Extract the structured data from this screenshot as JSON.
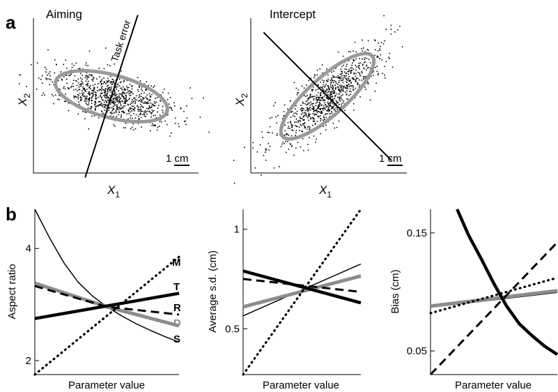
{
  "panel_labels": {
    "a": "a",
    "b": "b"
  },
  "colors": {
    "ink": "#000000",
    "gray": "#8c8c8c",
    "ellipse": "#9a9a9a"
  },
  "chart_data": [
    {
      "type": "scatter",
      "title": "Aiming",
      "xlabel": "X",
      "xlabel_sub": "1",
      "ylabel": "X",
      "ylabel_sub": "2",
      "line_label": "Task error",
      "scale_bar_label": "1 cm",
      "cloud": {
        "center": [
          0,
          0
        ],
        "major_sd": 1.3,
        "minor_sd": 0.45,
        "angle_deg": -15,
        "n": 900
      },
      "covariance_ellipse": {
        "semi_major": 2.3,
        "semi_minor": 0.85,
        "angle_deg": -15
      },
      "task_error_line": {
        "angle_deg": 72,
        "half_length": 3.4
      }
    },
    {
      "type": "scatter",
      "title": "Intercept",
      "xlabel": "X",
      "xlabel_sub": "1",
      "ylabel": "X",
      "ylabel_sub": "2",
      "scale_bar_label": "1 cm",
      "cloud": {
        "center": [
          0,
          0
        ],
        "major_sd": 1.35,
        "minor_sd": 0.42,
        "angle_deg": 42,
        "n": 900
      },
      "covariance_ellipse": {
        "semi_major": 2.4,
        "semi_minor": 0.75,
        "angle_deg": 42
      },
      "line": {
        "angle_deg": -45,
        "half_length": 3.6
      }
    },
    {
      "type": "line",
      "xlabel": "Parameter value",
      "ylabel": "Aspect ratio",
      "xlim": [
        0,
        1
      ],
      "ylim": [
        1.75,
        4.7
      ],
      "yticks": [
        2,
        4
      ],
      "series": [
        {
          "name": "M",
          "style": "dotted",
          "x": [
            0,
            1
          ],
          "y": [
            1.72,
            3.85
          ]
        },
        {
          "name": "T",
          "style": "thick",
          "x": [
            0,
            1
          ],
          "y": [
            2.75,
            3.2
          ]
        },
        {
          "name": "R",
          "style": "dashed",
          "x": [
            0,
            0.5,
            1
          ],
          "y": [
            3.33,
            2.96,
            2.82
          ]
        },
        {
          "name": "D",
          "style": "gray",
          "x": [
            0,
            0.5,
            1
          ],
          "y": [
            3.38,
            2.96,
            2.62
          ]
        },
        {
          "name": "S",
          "style": "thin",
          "x": [
            0,
            0.1,
            0.2,
            0.3,
            0.4,
            0.5,
            0.6,
            0.7,
            0.8,
            0.9,
            1.0
          ],
          "y": [
            4.75,
            4.2,
            3.75,
            3.4,
            3.15,
            2.96,
            2.8,
            2.66,
            2.54,
            2.43,
            2.33
          ]
        }
      ]
    },
    {
      "type": "line",
      "xlabel": "Parameter value",
      "ylabel": "Average s.d. (cm)",
      "xlim": [
        0,
        1
      ],
      "ylim": [
        0.27,
        1.1
      ],
      "yticks": [
        0.5,
        1
      ],
      "series": [
        {
          "style": "dotted",
          "x": [
            0,
            1
          ],
          "y": [
            0.27,
            1.1
          ]
        },
        {
          "style": "thick",
          "x": [
            0,
            1
          ],
          "y": [
            0.79,
            0.63
          ]
        },
        {
          "style": "dashed",
          "x": [
            0,
            1
          ],
          "y": [
            0.75,
            0.685
          ]
        },
        {
          "style": "gray",
          "x": [
            0,
            1
          ],
          "y": [
            0.61,
            0.765
          ]
        },
        {
          "style": "thin",
          "x": [
            0,
            1
          ],
          "y": [
            0.565,
            0.825
          ]
        }
      ]
    },
    {
      "type": "line",
      "xlabel": "Parameter value",
      "ylabel": "Bias (cm)",
      "xlim": [
        0,
        1
      ],
      "ylim": [
        0.03,
        0.17
      ],
      "yticks": [
        0.05,
        0.15
      ],
      "series": [
        {
          "style": "thick",
          "x": [
            0.21,
            0.3,
            0.4,
            0.5,
            0.6,
            0.7,
            0.8,
            0.9,
            1.0
          ],
          "y": [
            0.17,
            0.148,
            0.128,
            0.107,
            0.088,
            0.073,
            0.063,
            0.054,
            0.047
          ]
        },
        {
          "style": "dashed",
          "x": [
            0,
            1
          ],
          "y": [
            0.03,
            0.142
          ]
        },
        {
          "style": "dotted",
          "x": [
            0,
            1
          ],
          "y": [
            0.082,
            0.112
          ]
        },
        {
          "style": "gray",
          "x": [
            0,
            1
          ],
          "y": [
            0.088,
            0.101
          ]
        },
        {
          "style": "thin",
          "x": [
            0,
            1
          ],
          "y": [
            0.087,
            0.0995
          ]
        }
      ]
    }
  ]
}
